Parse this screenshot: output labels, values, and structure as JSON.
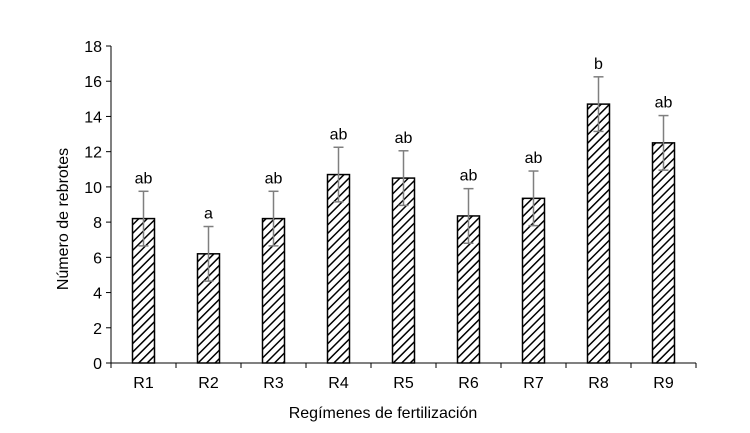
{
  "chart_data": {
    "type": "bar",
    "title": "",
    "xlabel": "Regímenes de fertilización",
    "ylabel": "Número de rebrotes",
    "ylim": [
      0,
      18
    ],
    "yticks": [
      "0",
      "2",
      "4",
      "6",
      "8",
      "10",
      "12",
      "14",
      "16",
      "18"
    ],
    "grid": false,
    "legend": "none",
    "bar_fill": "diagonal-hatch",
    "bar_stroke_color": "#000000",
    "errorbar_color": "#7f7f7f",
    "categories": [
      "R1",
      "R2",
      "R3",
      "R4",
      "R5",
      "R6",
      "R7",
      "R8",
      "R9"
    ],
    "values": [
      8.2,
      6.2,
      8.2,
      10.7,
      10.5,
      8.35,
      9.35,
      14.7,
      12.5
    ],
    "errors": [
      1.55,
      1.55,
      1.55,
      1.55,
      1.55,
      1.55,
      1.55,
      1.55,
      1.55
    ],
    "letters": [
      "ab",
      "a",
      "ab",
      "ab",
      "ab",
      "ab",
      "ab",
      "b",
      "ab"
    ]
  }
}
